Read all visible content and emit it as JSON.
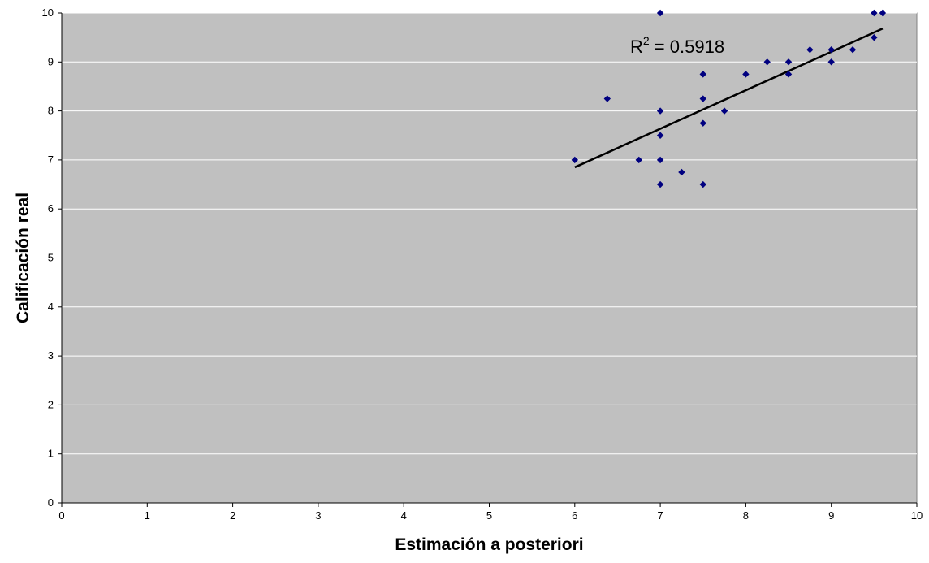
{
  "chart_data": {
    "type": "scatter",
    "title": "",
    "xlabel": "Estimación a posteriori",
    "ylabel": "Calificación real",
    "xlim": [
      0,
      10
    ],
    "ylim": [
      0,
      10
    ],
    "x_ticks": [
      0,
      1,
      2,
      3,
      4,
      5,
      6,
      7,
      8,
      9,
      10
    ],
    "y_ticks": [
      0,
      1,
      2,
      3,
      4,
      5,
      6,
      7,
      8,
      9,
      10
    ],
    "grid": "horizontal",
    "legend": "none",
    "series": [
      {
        "points": [
          [
            6,
            7
          ],
          [
            6.38,
            8.25
          ],
          [
            6.75,
            7
          ],
          [
            7,
            10
          ],
          [
            7,
            8
          ],
          [
            7,
            7.5
          ],
          [
            7,
            7
          ],
          [
            7,
            6.5
          ],
          [
            7.25,
            6.75
          ],
          [
            7.5,
            8.75
          ],
          [
            7.5,
            8.25
          ],
          [
            7.5,
            7.75
          ],
          [
            7.5,
            6.5
          ],
          [
            7.75,
            8
          ],
          [
            8,
            8.75
          ],
          [
            8.25,
            9
          ],
          [
            8.5,
            9
          ],
          [
            8.5,
            8.75
          ],
          [
            8.75,
            9.25
          ],
          [
            9,
            9.25
          ],
          [
            9,
            9
          ],
          [
            9.25,
            9.25
          ],
          [
            9.5,
            10
          ],
          [
            9.5,
            9.5
          ],
          [
            9.6,
            10
          ]
        ]
      }
    ],
    "trendline": {
      "x": [
        6,
        9.6
      ],
      "y": [
        6.85,
        9.68
      ]
    },
    "annotation": {
      "base": "R",
      "sup": "2",
      "rest": " = 0.5918"
    },
    "colors": {
      "plot_bg": "#c0c0c0",
      "marker": "#000080",
      "grid": "#ffffff",
      "trendline": "#000000"
    }
  }
}
